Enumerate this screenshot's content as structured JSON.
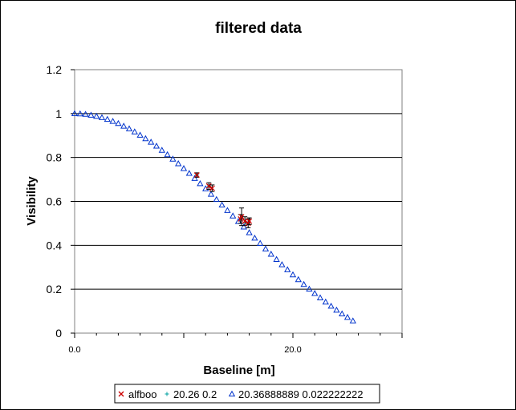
{
  "chart_data": {
    "type": "scatter",
    "title": "filtered data",
    "xlabel": "Baseline [m]",
    "ylabel": "Visibility",
    "xlim": [
      0,
      30
    ],
    "ylim": [
      0,
      1.2
    ],
    "x_ticks": [
      0,
      20
    ],
    "x_tick_labels": [
      "0.0",
      "20.0"
    ],
    "y_ticks": [
      0,
      0.2,
      0.4,
      0.6,
      0.8,
      1,
      1.2
    ],
    "y_tick_labels": [
      "0",
      "0.2",
      "0.4",
      "0.6",
      "0.8",
      "1",
      "1.2"
    ],
    "grid": "horizontal major lines",
    "legend_position": "bottom",
    "series": [
      {
        "name": "alfboo",
        "marker": "x",
        "color": "#cc0000",
        "points": [
          {
            "x": 11.2,
            "y": 0.72,
            "err": 0.01
          },
          {
            "x": 12.3,
            "y": 0.67,
            "err": 0.015
          },
          {
            "x": 12.6,
            "y": 0.66,
            "err": 0.015
          },
          {
            "x": 15.2,
            "y": 0.52,
            "err": 0.02
          },
          {
            "x": 15.3,
            "y": 0.53,
            "err": 0.04
          },
          {
            "x": 15.6,
            "y": 0.51,
            "err": 0.02
          },
          {
            "x": 15.9,
            "y": 0.5,
            "err": 0.02
          },
          {
            "x": 16.0,
            "y": 0.51,
            "err": 0.015
          }
        ]
      },
      {
        "name": "20.26 0.2",
        "marker": "+",
        "color": "#00a0a0",
        "points": [
          {
            "x": 11.2,
            "y": 0.72
          },
          {
            "x": 12.3,
            "y": 0.67
          },
          {
            "x": 15.3,
            "y": 0.52
          },
          {
            "x": 15.8,
            "y": 0.5
          }
        ]
      },
      {
        "name": "20.36888889 0.022222222",
        "marker": "triangle",
        "color": "#0033cc",
        "x": [
          0,
          0.5,
          1,
          1.5,
          2,
          2.5,
          3,
          3.5,
          4,
          4.5,
          5,
          5.5,
          6,
          6.5,
          7,
          7.5,
          8,
          8.5,
          9,
          9.5,
          10,
          10.5,
          11,
          11.5,
          12,
          12.5,
          13,
          13.5,
          14,
          14.5,
          15,
          15.5,
          16,
          16.5,
          17,
          17.5,
          18,
          18.5,
          19,
          19.5,
          20,
          20.5,
          21,
          21.5,
          22,
          22.5,
          23,
          23.5,
          24,
          24.5,
          25,
          25.5
        ],
        "y": [
          1.0,
          0.999,
          0.997,
          0.993,
          0.988,
          0.982,
          0.974,
          0.965,
          0.955,
          0.943,
          0.931,
          0.917,
          0.902,
          0.886,
          0.87,
          0.852,
          0.833,
          0.813,
          0.793,
          0.772,
          0.75,
          0.728,
          0.705,
          0.681,
          0.658,
          0.633,
          0.609,
          0.584,
          0.559,
          0.534,
          0.509,
          0.484,
          0.458,
          0.433,
          0.409,
          0.384,
          0.36,
          0.336,
          0.312,
          0.289,
          0.266,
          0.244,
          0.222,
          0.201,
          0.181,
          0.161,
          0.142,
          0.123,
          0.105,
          0.088,
          0.072,
          0.056
        ]
      }
    ]
  }
}
